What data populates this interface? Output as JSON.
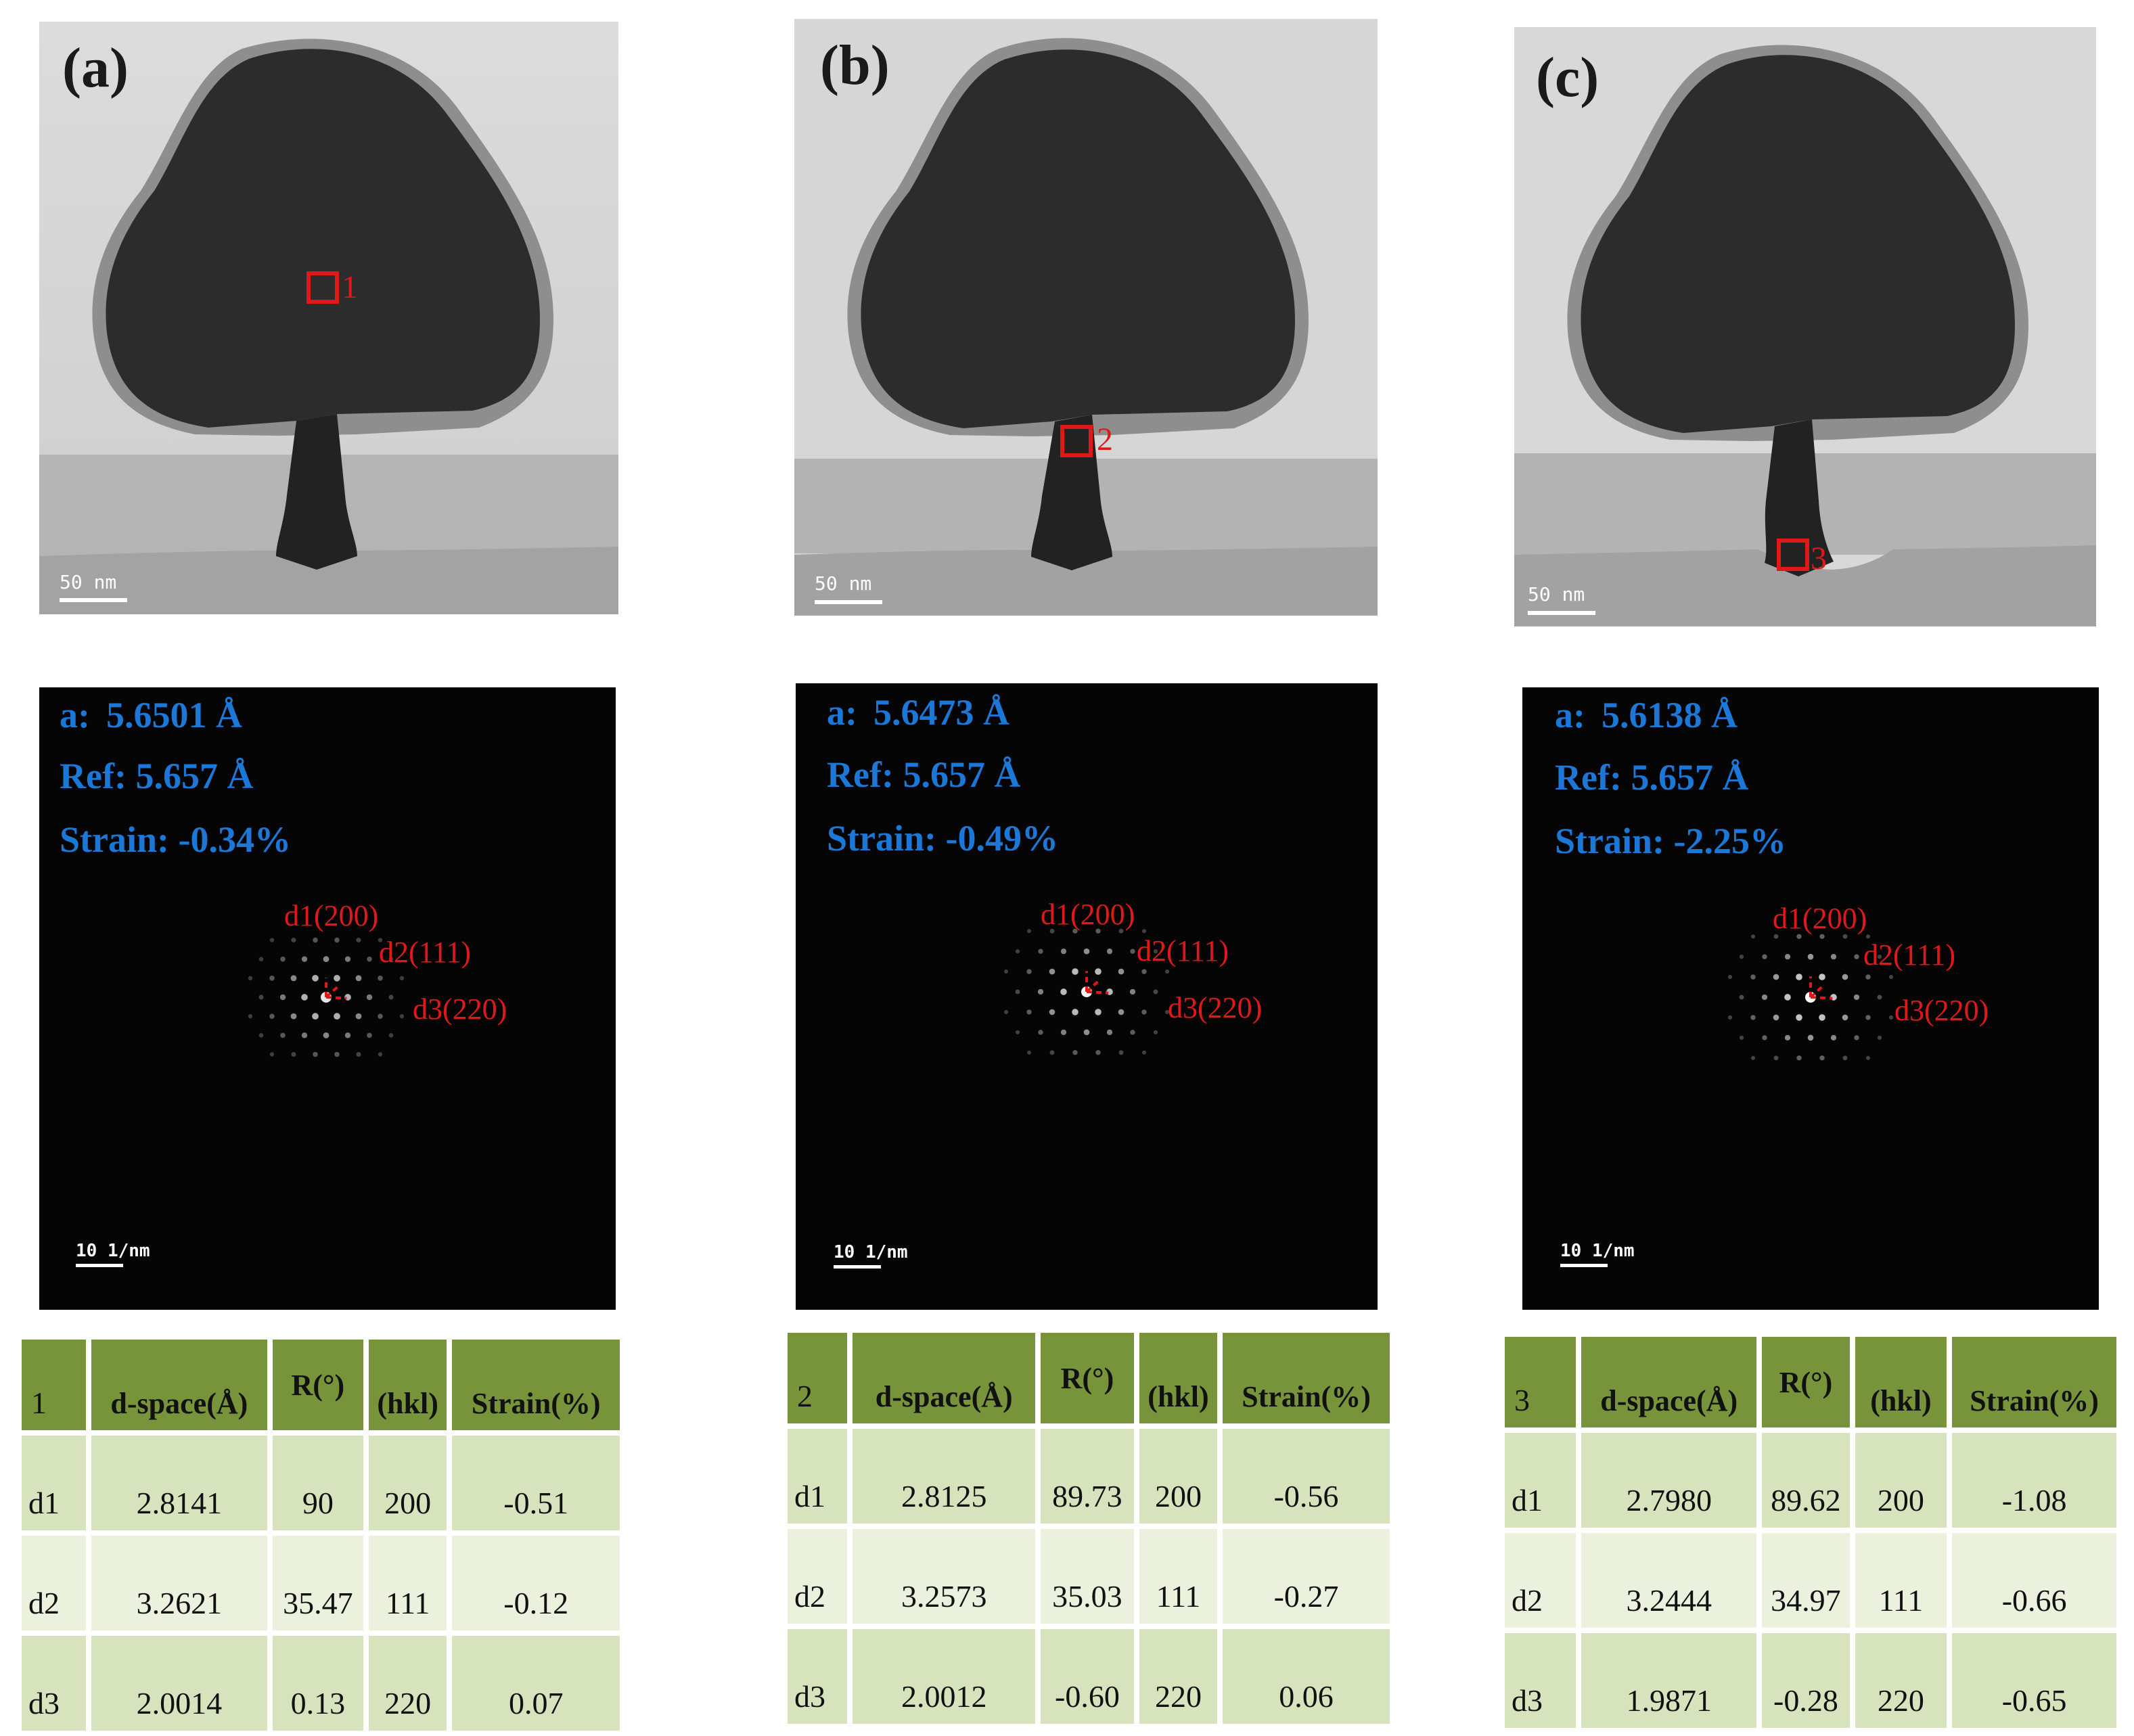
{
  "panels": [
    {
      "label": "(a)",
      "region": "1",
      "tem_scale": "50 nm",
      "fft": {
        "a_label": "a:",
        "a_value": "5.6501 Å",
        "ref_label": "Ref:",
        "ref_value": "5.657 Å",
        "strain_label": "Strain:",
        "strain_value": "-0.34%",
        "scale": "10 1/nm"
      },
      "annotations": [
        "d1(200)",
        "d2(111)",
        "d3(220)"
      ],
      "table": {
        "headers": [
          "1",
          "d-space(Å)",
          "R(°)",
          "(hkl)",
          "Strain(%)"
        ],
        "rows": [
          [
            "d1",
            "2.8141",
            "90",
            "200",
            "-0.51"
          ],
          [
            "d2",
            "3.2621",
            "35.47",
            "111",
            "-0.12"
          ],
          [
            "d3",
            "2.0014",
            "0.13",
            "220",
            "0.07"
          ]
        ]
      }
    },
    {
      "label": "(b)",
      "region": "2",
      "tem_scale": "50 nm",
      "fft": {
        "a_label": "a:",
        "a_value": "5.6473 Å",
        "ref_label": "Ref:",
        "ref_value": "5.657 Å",
        "strain_label": "Strain:",
        "strain_value": "-0.49%",
        "scale": "10 1/nm"
      },
      "annotations": [
        "d1(200)",
        "d2(111)",
        "d3(220)"
      ],
      "table": {
        "headers": [
          "2",
          "d-space(Å)",
          "R(°)",
          "(hkl)",
          "Strain(%)"
        ],
        "rows": [
          [
            "d1",
            "2.8125",
            "89.73",
            "200",
            "-0.56"
          ],
          [
            "d2",
            "3.2573",
            "35.03",
            "111",
            "-0.27"
          ],
          [
            "d3",
            "2.0012",
            "-0.60",
            "220",
            "0.06"
          ]
        ]
      }
    },
    {
      "label": "(c)",
      "region": "3",
      "tem_scale": "50 nm",
      "fft": {
        "a_label": "a:",
        "a_value": "5.6138 Å",
        "ref_label": "Ref:",
        "ref_value": "5.657 Å",
        "strain_label": "Strain:",
        "strain_value": "-2.25%",
        "scale": "10 1/nm"
      },
      "annotations": [
        "d1(200)",
        "d2(111)",
        "d3(220)"
      ],
      "table": {
        "headers": [
          "3",
          "d-space(Å)",
          "R(°)",
          "(hkl)",
          "Strain(%)"
        ],
        "rows": [
          [
            "d1",
            "2.7980",
            "89.62",
            "200",
            "-1.08"
          ],
          [
            "d2",
            "3.2444",
            "34.97",
            "111",
            "-0.66"
          ],
          [
            "d3",
            "1.9871",
            "-0.28",
            "220",
            "-0.65"
          ]
        ]
      }
    }
  ],
  "colors": {
    "highlight": "#e0181a",
    "fft_text": "#1c78d6",
    "table_header": "#77943a",
    "table_row_dark": "#d6e3bc",
    "table_row_light": "#ebf1dd"
  }
}
